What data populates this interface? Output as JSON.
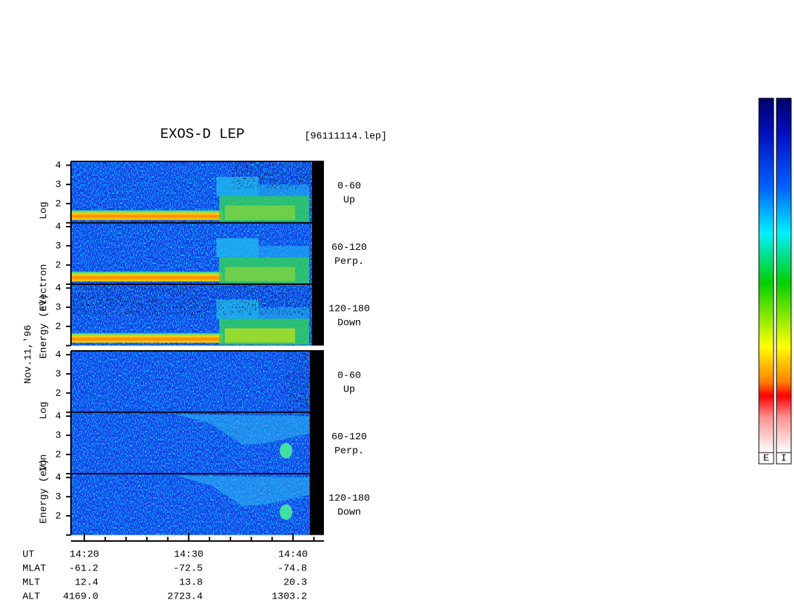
{
  "header": {
    "title": "EXOS-D LEP",
    "file": "[96111114.lep]"
  },
  "date": "Nov.11,'96",
  "chart_data": [
    {
      "type": "spectrogram",
      "species": "Electron",
      "ylabel": [
        "Log",
        "Electron",
        "Energy (eV)"
      ],
      "ylim": [
        1,
        4.2
      ],
      "yticks": [
        2,
        3,
        4
      ],
      "panels": [
        {
          "range": "0-60",
          "direction": "Up"
        },
        {
          "range": "60-120",
          "direction": "Perp."
        },
        {
          "range": "120-180",
          "direction": "Down"
        }
      ]
    },
    {
      "type": "spectrogram",
      "species": "Ion",
      "ylabel": [
        "Log",
        "Ion",
        "Energy (eV)"
      ],
      "ylim": [
        1,
        4.2
      ],
      "yticks": [
        2,
        3,
        4
      ],
      "panels": [
        {
          "range": "0-60",
          "direction": "Up"
        },
        {
          "range": "60-120",
          "direction": "Perp."
        },
        {
          "range": "120-180",
          "direction": "Down"
        }
      ]
    }
  ],
  "ephemeris": {
    "rows": [
      {
        "name": "UT",
        "values": [
          "14:20",
          "14:30",
          "14:40"
        ]
      },
      {
        "name": "MLAT",
        "values": [
          "-61.2",
          "-72.5",
          "-74.8"
        ]
      },
      {
        "name": "MLT",
        "values": [
          "12.4",
          "13.8",
          "20.3"
        ]
      },
      {
        "name": "ALT",
        "values": [
          "4169.0",
          "2723.4",
          "1303.2"
        ]
      }
    ]
  },
  "colorbars": [
    "E",
    "I"
  ]
}
